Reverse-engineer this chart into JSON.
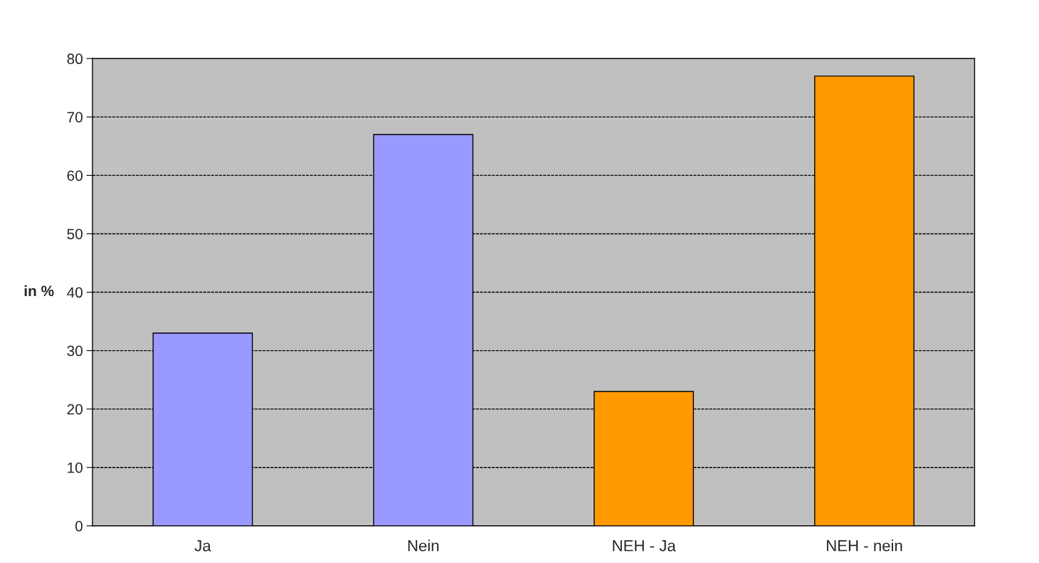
{
  "chart_data": {
    "type": "bar",
    "ylabel": "in %",
    "categories": [
      "Ja",
      "Nein",
      "NEH - Ja",
      "NEH - nein"
    ],
    "values": [
      33,
      67,
      23,
      77
    ],
    "colors": [
      "#9999ff",
      "#9999ff",
      "#ff9900",
      "#ff9900"
    ],
    "ylim": [
      0,
      80
    ],
    "yticks": [
      0,
      10,
      20,
      30,
      40,
      50,
      60,
      70,
      80
    ],
    "grid": "y",
    "legend": false
  }
}
